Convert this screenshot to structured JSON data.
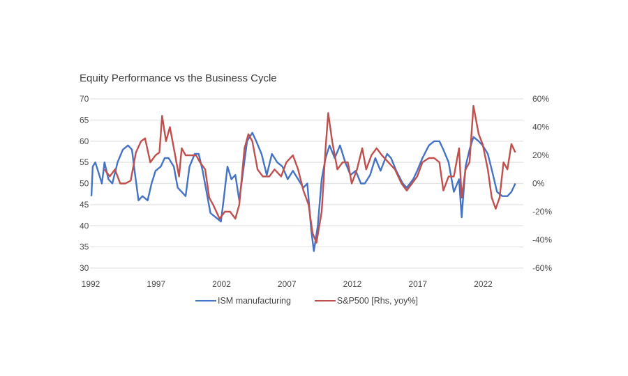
{
  "chart_data": {
    "type": "line",
    "title": "Equity Performance vs the Business Cycle",
    "xlabel": "",
    "ylabel": "",
    "y2label": "",
    "x_ticks": [
      "1992",
      "1997",
      "2002",
      "2007",
      "2012",
      "2017",
      "2022"
    ],
    "x_range": [
      1992,
      2024.5
    ],
    "ylim": [
      30,
      70
    ],
    "y_ticks": [
      "70",
      "65",
      "60",
      "55",
      "50",
      "45",
      "40",
      "35",
      "30"
    ],
    "y2lim": [
      -60,
      60
    ],
    "y2_ticks": [
      "60%",
      "40%",
      "20%",
      "0%",
      "-20%",
      "-40%",
      "-60%"
    ],
    "grid": true,
    "legend_position": "bottom",
    "series": [
      {
        "name": "ISM manufacturing",
        "axis": "left",
        "color": "#4472c4",
        "x": [
          1992.0,
          1992.1,
          1992.3,
          1992.5,
          1992.8,
          1993.0,
          1993.3,
          1993.6,
          1994.0,
          1994.4,
          1994.8,
          1995.1,
          1995.3,
          1995.6,
          1995.9,
          1996.3,
          1996.6,
          1996.9,
          1997.3,
          1997.6,
          1997.9,
          1998.3,
          1998.6,
          1998.9,
          1999.2,
          1999.5,
          1999.9,
          2000.2,
          2000.5,
          2000.8,
          2001.1,
          2001.5,
          2001.9,
          2002.1,
          2002.4,
          2002.7,
          2003.0,
          2003.3,
          2003.6,
          2003.9,
          2004.3,
          2004.6,
          2005.0,
          2005.4,
          2005.8,
          2006.2,
          2006.6,
          2007.0,
          2007.4,
          2007.8,
          2008.2,
          2008.5,
          2008.8,
          2009.0,
          2009.3,
          2009.6,
          2009.9,
          2010.2,
          2010.6,
          2011.0,
          2011.4,
          2011.8,
          2012.2,
          2012.6,
          2012.9,
          2013.3,
          2013.7,
          2014.1,
          2014.6,
          2014.9,
          2015.3,
          2015.8,
          2016.1,
          2016.6,
          2016.9,
          2017.3,
          2017.8,
          2018.2,
          2018.6,
          2018.9,
          2019.3,
          2019.7,
          2020.1,
          2020.3,
          2020.6,
          2020.9,
          2021.2,
          2021.6,
          2021.9,
          2022.3,
          2022.7,
          2023.0,
          2023.4,
          2023.8,
          2024.1,
          2024.4
        ],
        "values": [
          47,
          54,
          55,
          53,
          50,
          55,
          51,
          50,
          55,
          58,
          59,
          58,
          53,
          46,
          47,
          46,
          50,
          53,
          54,
          56,
          56,
          54,
          49,
          48,
          47,
          54,
          57,
          57,
          53,
          48,
          43,
          42,
          41,
          46,
          54,
          51,
          52,
          46,
          53,
          60,
          62,
          60,
          57,
          52,
          57,
          55,
          54,
          51,
          53,
          51,
          49,
          50,
          39,
          34,
          40,
          51,
          56,
          59,
          56,
          59,
          55,
          52,
          53,
          50,
          50,
          52,
          56,
          53,
          57,
          56,
          53,
          50,
          49,
          51,
          53,
          56,
          59,
          60,
          60,
          58,
          55,
          48,
          51,
          42,
          54,
          58,
          61,
          60,
          59,
          57,
          52,
          48,
          47,
          47,
          48,
          50
        ]
      },
      {
        "name": "S&P500 [Rhs, yoy%]",
        "axis": "right",
        "color": "#c0504d",
        "x": [
          1993.0,
          1993.4,
          1993.8,
          1994.2,
          1994.6,
          1995.0,
          1995.4,
          1995.8,
          1996.1,
          1996.5,
          1996.9,
          1997.2,
          1997.4,
          1997.7,
          1998.0,
          1998.3,
          1998.7,
          1998.9,
          1999.2,
          1999.6,
          2000.0,
          2000.3,
          2000.7,
          2001.0,
          2001.3,
          2001.8,
          2002.2,
          2002.6,
          2003.0,
          2003.3,
          2003.7,
          2004.0,
          2004.3,
          2004.7,
          2005.1,
          2005.6,
          2006.0,
          2006.5,
          2006.9,
          2007.4,
          2007.8,
          2008.2,
          2008.6,
          2008.9,
          2009.2,
          2009.6,
          2009.9,
          2010.1,
          2010.4,
          2010.8,
          2011.2,
          2011.6,
          2011.9,
          2012.3,
          2012.7,
          2013.0,
          2013.4,
          2013.8,
          2014.2,
          2014.7,
          2015.2,
          2015.7,
          2016.1,
          2016.5,
          2016.9,
          2017.3,
          2017.8,
          2018.2,
          2018.6,
          2018.9,
          2019.3,
          2019.7,
          2020.1,
          2020.3,
          2020.6,
          2020.9,
          2021.2,
          2021.6,
          2021.9,
          2022.3,
          2022.6,
          2022.9,
          2023.2,
          2023.5,
          2023.8,
          2024.1,
          2024.4
        ],
        "values": [
          10,
          5,
          10,
          0,
          0,
          2,
          22,
          30,
          32,
          15,
          20,
          22,
          48,
          30,
          40,
          25,
          5,
          25,
          20,
          20,
          20,
          15,
          10,
          -10,
          -15,
          -25,
          -20,
          -20,
          -25,
          -15,
          25,
          35,
          30,
          10,
          5,
          5,
          10,
          5,
          15,
          20,
          10,
          -5,
          -15,
          -35,
          -42,
          -20,
          25,
          50,
          30,
          10,
          15,
          15,
          0,
          10,
          25,
          10,
          20,
          25,
          20,
          15,
          10,
          0,
          -5,
          0,
          5,
          15,
          18,
          18,
          15,
          -5,
          5,
          5,
          25,
          -10,
          10,
          15,
          55,
          35,
          28,
          10,
          -10,
          -18,
          -10,
          15,
          10,
          28,
          22
        ]
      }
    ]
  }
}
